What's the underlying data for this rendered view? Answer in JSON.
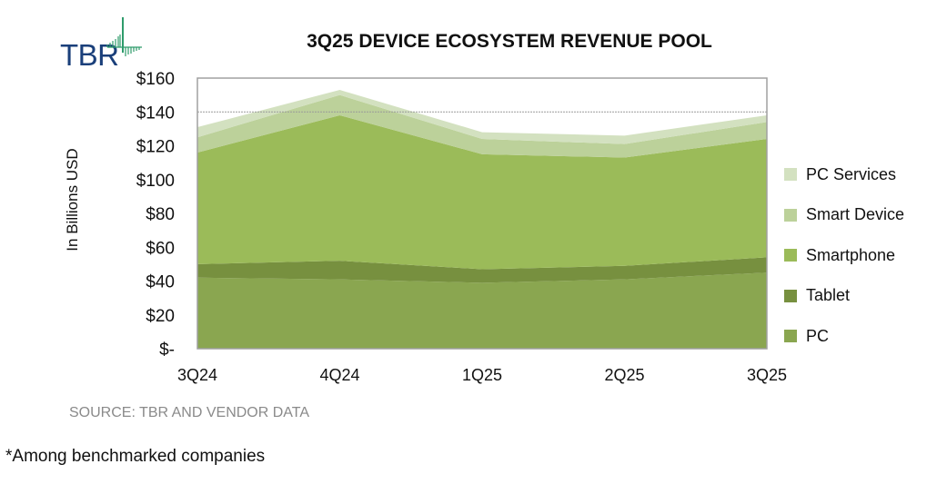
{
  "logo": {
    "text": "TBR"
  },
  "chart_data": {
    "type": "area",
    "stacked": true,
    "title": "3Q25 DEVICE ECOSYSTEM REVENUE POOL",
    "xlabel": "",
    "ylabel": "In Billions USD",
    "categories": [
      "3Q24",
      "4Q24",
      "1Q25",
      "2Q25",
      "3Q25"
    ],
    "ylim": [
      0,
      160
    ],
    "yticks": [
      0,
      20,
      40,
      60,
      80,
      100,
      120,
      140,
      160
    ],
    "ytick_labels": [
      "$-",
      "$20",
      "$40",
      "$60",
      "$80",
      "$100",
      "$120",
      "$140",
      "$160"
    ],
    "grid": "horizontal line at $140 only",
    "legend_position": "right",
    "series": [
      {
        "name": "PC",
        "color": "#8aa650",
        "values": [
          42,
          41,
          39,
          41,
          45
        ]
      },
      {
        "name": "Tablet",
        "color": "#77903f",
        "values": [
          8,
          11,
          8,
          8,
          9
        ]
      },
      {
        "name": "Smartphone",
        "color": "#9bbb59",
        "values": [
          66,
          86,
          68,
          64,
          70
        ]
      },
      {
        "name": "Smart Device",
        "color": "#bcd19a",
        "values": [
          9,
          12,
          9,
          8,
          10
        ]
      },
      {
        "name": "PC Services",
        "color": "#d3e1c0",
        "values": [
          6,
          3,
          4,
          5,
          4
        ]
      }
    ],
    "legend_order": [
      "PC Services",
      "Smart Device",
      "Smartphone",
      "Tablet",
      "PC"
    ]
  },
  "footer": {
    "source": "SOURCE: TBR AND VENDOR DATA",
    "note": "*Among benchmarked companies"
  }
}
